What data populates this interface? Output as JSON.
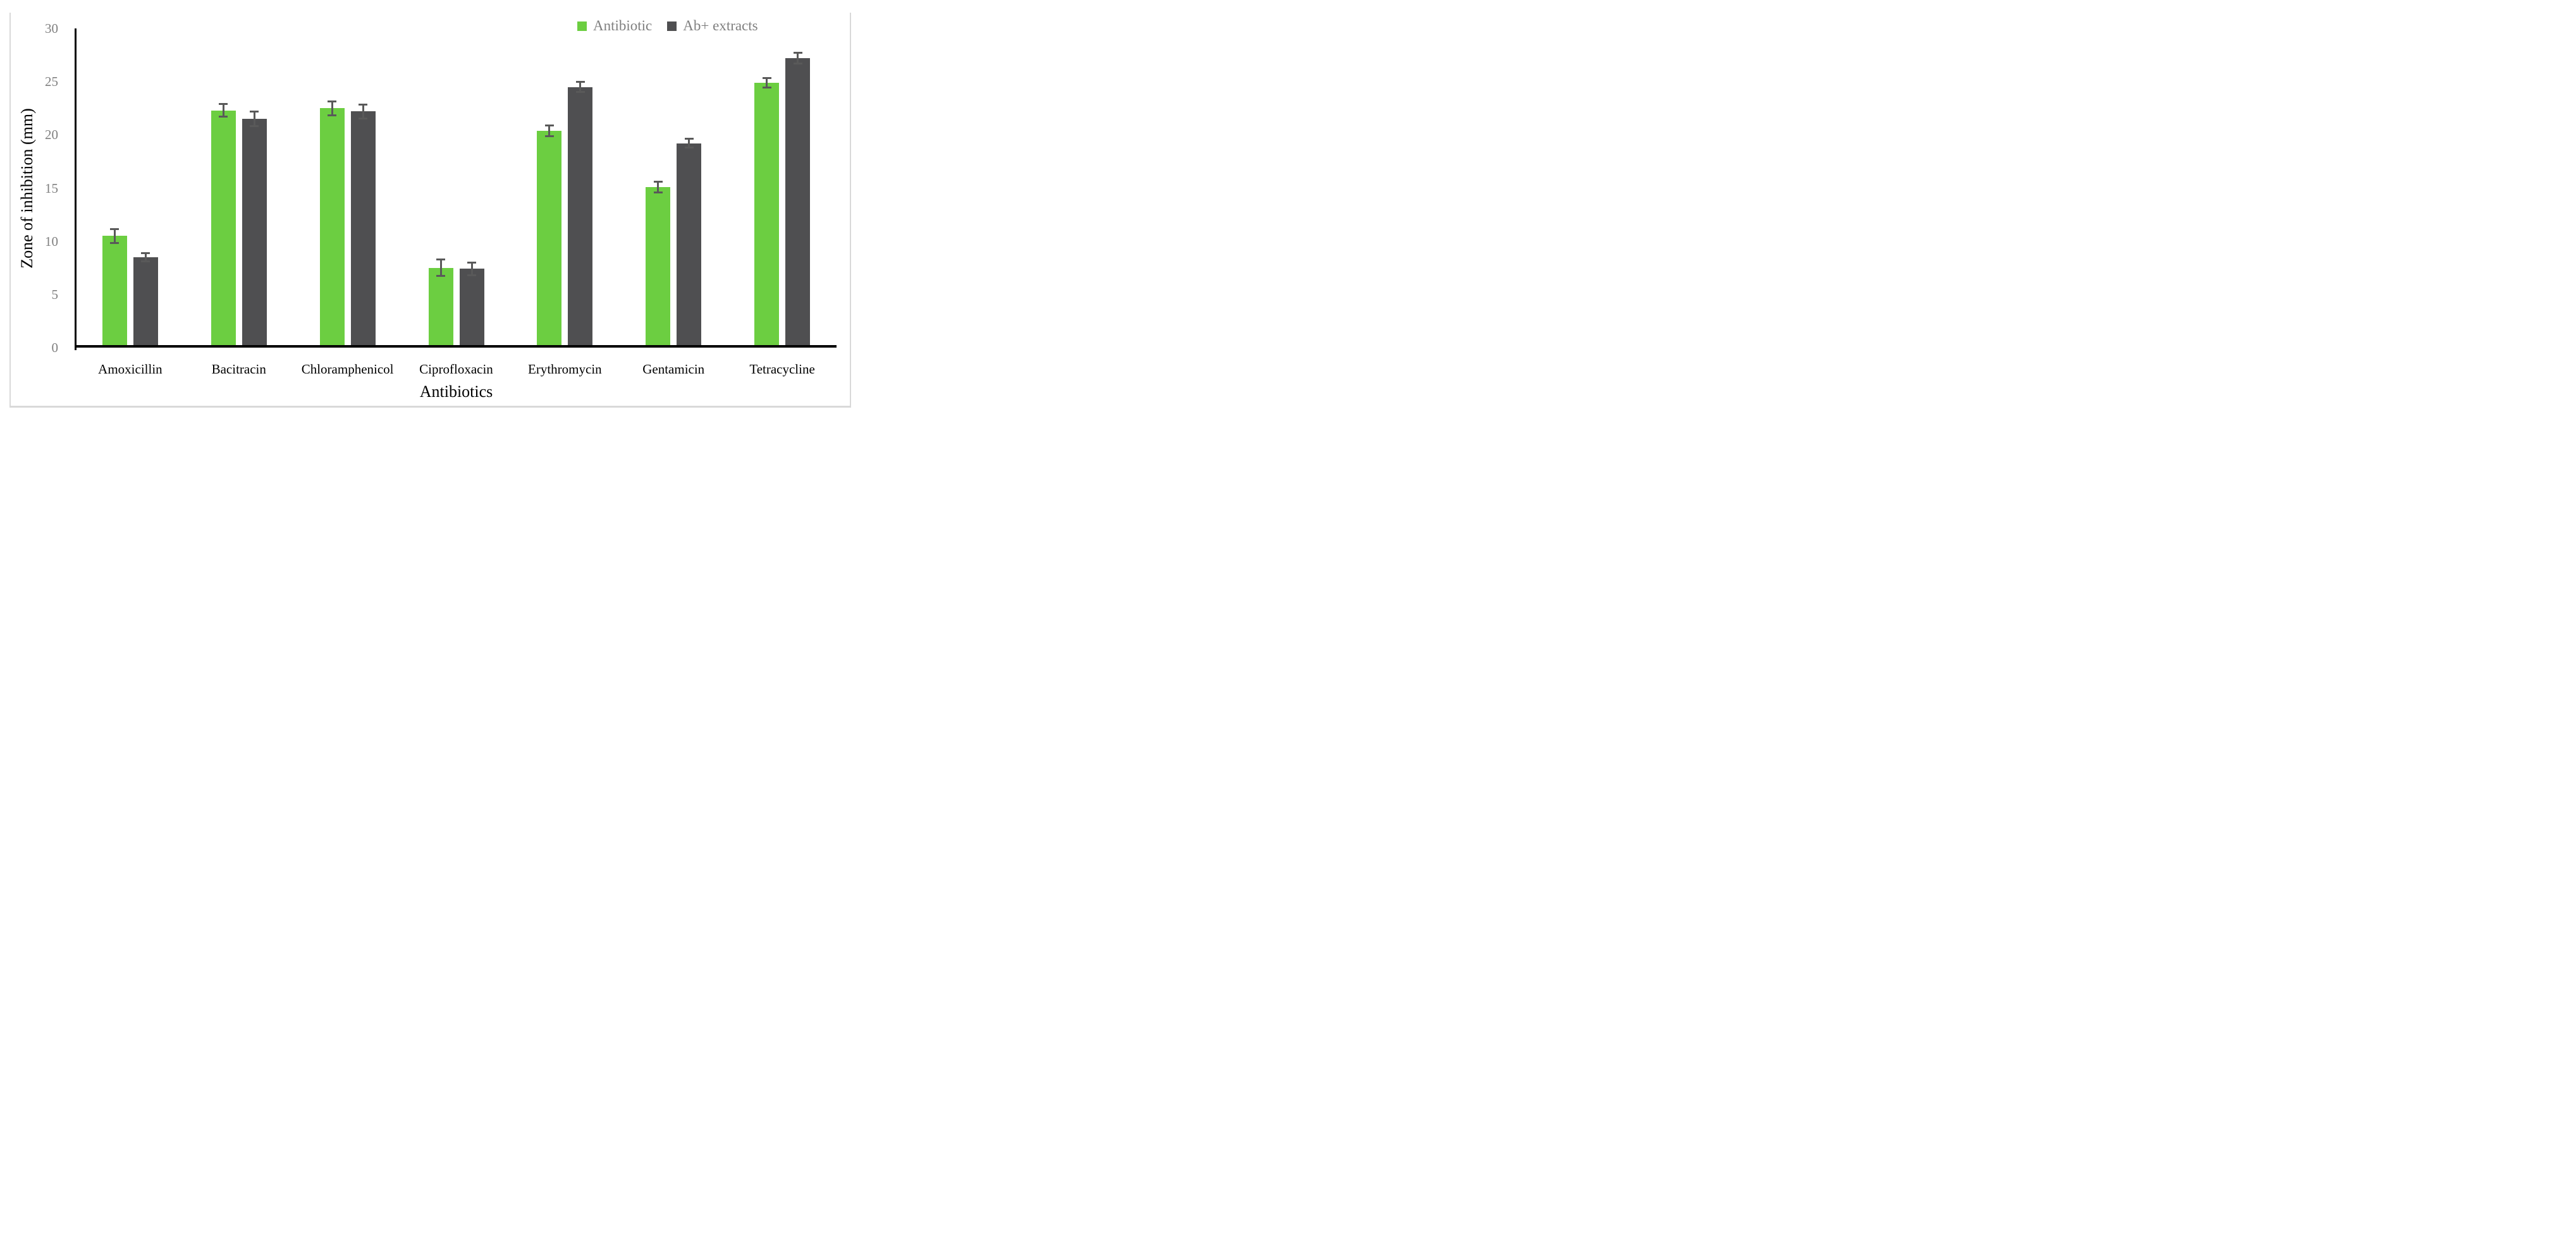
{
  "figure": {
    "background": "#FFFFFF",
    "frame_color": "#D9D9D9"
  },
  "chart_data": {
    "type": "bar",
    "title": "",
    "ylabel": "Zone of inhibition (mm)",
    "xlabel": "Antibiotics",
    "ylim": [
      0,
      30
    ],
    "ytick_step": 5,
    "grid": false,
    "legend_position": "top-right",
    "categories": [
      "Amoxicillin",
      "Bacitracin",
      "Chloramphenicol",
      "Ciprofloxacin",
      "Erythromycin",
      "Gentamicin",
      "Tetracycline"
    ],
    "series": [
      {
        "name": "Antibiotic",
        "color": "#6CCE41",
        "values": [
          10.5,
          22.3,
          22.5,
          7.5,
          20.4,
          15.1,
          24.9
        ],
        "errors": [
          0.75,
          0.7,
          0.75,
          0.85,
          0.6,
          0.6,
          0.55
        ]
      },
      {
        "name": "Ab+ extracts",
        "color": "#4F4F51",
        "values": [
          8.5,
          21.5,
          22.2,
          7.4,
          24.5,
          19.2,
          27.2
        ],
        "errors": [
          0.5,
          0.75,
          0.75,
          0.7,
          0.55,
          0.5,
          0.6
        ]
      }
    ],
    "error_bar_color": "#595959",
    "axis_color": "#000000",
    "tick_label_color": "#7F7F7F",
    "category_label_color": "#000000",
    "legend_text_color": "#7F7F7F"
  }
}
